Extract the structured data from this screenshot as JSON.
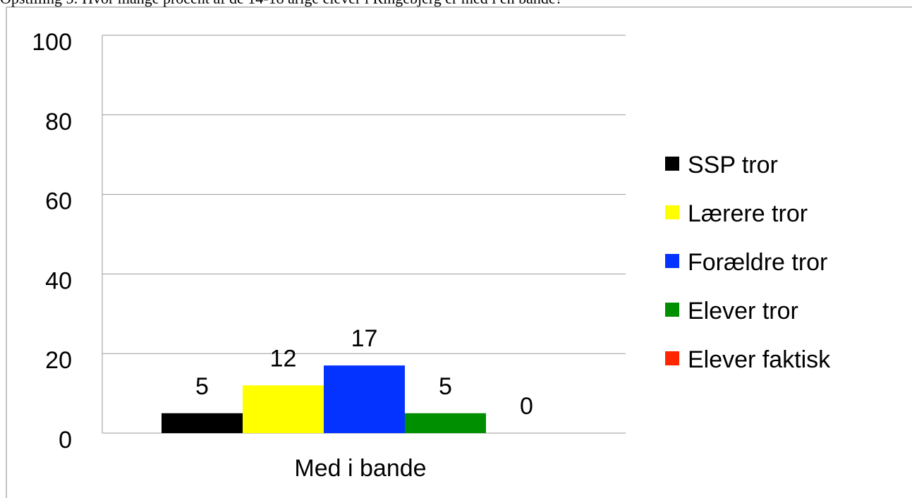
{
  "chart_data": {
    "type": "bar",
    "title": "Opstilling 5: Hvor mange procent af de 14-18 årige elever i Ringebjerg er med i en bande?",
    "categories": [
      "Med i bande"
    ],
    "series": [
      {
        "name": "SSP tror",
        "color": "#000000",
        "values": [
          5
        ]
      },
      {
        "name": "Lærere tror",
        "color": "#ffff00",
        "values": [
          12
        ]
      },
      {
        "name": "Forældre tror",
        "color": "#0433ff",
        "values": [
          17
        ]
      },
      {
        "name": "Elever tror",
        "color": "#008f00",
        "values": [
          5
        ]
      },
      {
        "name": "Elever faktisk",
        "color": "#ff2600",
        "values": [
          0
        ]
      }
    ],
    "ylim": [
      0,
      100
    ],
    "yticks": [
      0,
      20,
      40,
      60,
      80,
      100
    ],
    "grid": true,
    "legend": "right"
  }
}
